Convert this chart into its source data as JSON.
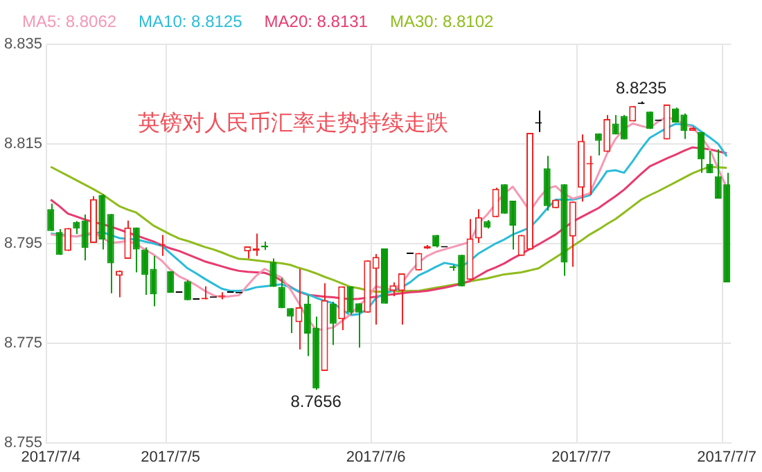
{
  "chart_data": {
    "type": "candlestick",
    "legend": "top left",
    "grid": true,
    "categories": [
      "2017/7/4",
      null,
      null,
      null,
      null,
      null,
      null,
      null,
      null,
      null,
      null,
      null,
      null,
      null,
      "2017/7/5",
      null,
      null,
      null,
      null,
      null,
      null,
      null,
      null,
      null,
      null,
      null,
      null,
      null,
      null,
      null,
      null,
      null,
      null,
      null,
      null,
      null,
      null,
      null,
      "2017/7/6",
      null,
      null,
      null,
      null,
      null,
      null,
      null,
      null,
      null,
      null,
      null,
      null,
      null,
      null,
      null,
      null,
      null,
      null,
      null,
      null,
      null,
      null,
      null,
      "2017/7/7",
      null,
      null,
      null,
      null,
      null,
      null,
      null,
      null,
      null,
      null,
      null,
      null,
      null,
      null,
      null,
      null,
      "2017/7/7"
    ],
    "ohlc": [
      [
        8.8019,
        8.803,
        8.7975,
        8.7975
      ],
      [
        8.7973,
        8.7979,
        8.7927,
        8.7927
      ],
      [
        8.7935,
        8.7981,
        8.7935,
        8.7981
      ],
      [
        8.7993,
        8.7995,
        8.7969,
        8.798
      ],
      [
        8.7996,
        8.8008,
        8.7916,
        8.7941
      ],
      [
        8.7951,
        8.8045,
        8.7951,
        8.8039
      ],
      [
        8.8047,
        8.8049,
        8.7938,
        8.7958
      ],
      [
        8.8009,
        8.8009,
        8.785,
        8.791
      ],
      [
        8.7885,
        8.7896,
        8.7842,
        8.7895
      ],
      [
        8.7919,
        8.7996,
        8.7919,
        8.7982
      ],
      [
        8.7982,
        8.7982,
        8.7892,
        8.7938
      ],
      [
        8.7938,
        8.7942,
        8.7847,
        8.7887
      ],
      [
        8.7899,
        8.7925,
        8.7824,
        8.7848
      ],
      [
        8.7946,
        8.7967,
        8.7925,
        8.7948
      ],
      [
        8.7894,
        8.7894,
        8.7851,
        8.7851
      ],
      [
        8.7851,
        8.7851,
        8.7851,
        8.7851
      ],
      [
        8.7874,
        8.7876,
        8.7836,
        8.7836
      ],
      [
        8.7837,
        8.7837,
        8.7837,
        8.7837
      ],
      [
        8.7838,
        8.7864,
        8.7838,
        8.7841
      ],
      [
        8.7841,
        8.7841,
        8.7841,
        8.7841
      ],
      [
        8.7843,
        8.7852,
        8.7838,
        8.7846
      ],
      [
        8.7851,
        8.7851,
        8.7851,
        8.7851
      ],
      [
        8.785,
        8.785,
        8.785,
        8.785
      ],
      [
        8.7934,
        8.7944,
        8.792,
        8.7944
      ],
      [
        8.7935,
        8.797,
        8.7925,
        8.794
      ],
      [
        8.7946,
        8.7954,
        8.7937,
        8.7942
      ],
      [
        8.7913,
        8.792,
        8.7863,
        8.7863
      ],
      [
        8.7863,
        8.7881,
        8.782,
        8.782
      ],
      [
        8.782,
        8.782,
        8.777,
        8.7803
      ],
      [
        8.7792,
        8.7899,
        8.7737,
        8.7822
      ],
      [
        8.7829,
        8.7846,
        8.7724,
        8.7769
      ],
      [
        8.7781,
        8.7803,
        8.7656,
        8.7659
      ],
      [
        8.7694,
        8.787,
        8.7694,
        8.7836
      ],
      [
        8.7829,
        8.7833,
        8.7746,
        8.7789
      ],
      [
        8.7798,
        8.7864,
        8.7776,
        8.7864
      ],
      [
        8.7864,
        8.7864,
        8.7807,
        8.7811
      ],
      [
        8.783,
        8.783,
        8.7741,
        8.7811
      ],
      [
        8.7811,
        8.7916,
        8.7811,
        8.7916
      ],
      [
        8.7899,
        8.7929,
        8.7787,
        8.7923
      ],
      [
        8.794,
        8.794,
        8.7829,
        8.7829
      ],
      [
        8.7855,
        8.7872,
        8.7844,
        8.7866
      ],
      [
        8.7855,
        8.789,
        8.7787,
        8.789
      ],
      [
        8.7929,
        8.7929,
        8.7929,
        8.7929
      ],
      [
        8.7896,
        8.7931,
        8.7896,
        8.7931
      ],
      [
        8.794,
        8.7947,
        8.7939,
        8.7945
      ],
      [
        8.7967,
        8.7967,
        8.7942,
        8.7944
      ],
      [
        8.7942,
        8.7942,
        8.7942,
        8.7942
      ],
      [
        8.7902,
        8.7907,
        8.7895,
        8.7901
      ],
      [
        8.7927,
        8.7927,
        8.7864,
        8.7864
      ],
      [
        8.7877,
        8.7999,
        8.7877,
        8.796
      ],
      [
        8.796,
        8.8019,
        8.7951,
        8.8003
      ],
      [
        8.7995,
        8.7997,
        8.798,
        8.7982
      ],
      [
        8.8003,
        8.8062,
        8.8003,
        8.806
      ],
      [
        8.8069,
        8.8069,
        8.801,
        8.801
      ],
      [
        8.8036,
        8.8036,
        8.7938,
        8.7986
      ],
      [
        8.7925,
        8.7967,
        8.7925,
        8.7967
      ],
      [
        8.7938,
        8.8172,
        8.7938,
        8.8172
      ],
      [
        8.8191,
        8.8217,
        8.8174,
        8.8191
      ],
      [
        8.8101,
        8.8126,
        8.8016,
        8.8025
      ],
      [
        8.8021,
        8.8038,
        8.8021,
        8.8038
      ],
      [
        8.8069,
        8.8069,
        8.7885,
        8.7912
      ],
      [
        8.7964,
        8.8034,
        8.7903,
        8.8034
      ],
      [
        8.8062,
        8.8169,
        8.8034,
        8.8156
      ],
      [
        8.8109,
        8.8126,
        8.8047,
        8.8111
      ],
      [
        8.8171,
        8.8171,
        8.8127,
        8.8156
      ],
      [
        8.8134,
        8.8208,
        8.8134,
        8.82
      ],
      [
        8.8191,
        8.8208,
        8.8169,
        8.8169
      ],
      [
        8.8206,
        8.8208,
        8.8159,
        8.8159
      ],
      [
        8.8195,
        8.8226,
        8.8195,
        8.8226
      ],
      [
        8.823,
        8.8235,
        8.823,
        8.823
      ],
      [
        8.8215,
        8.8215,
        8.818,
        8.818
      ],
      [
        8.8196,
        8.8196,
        8.8196,
        8.8196
      ],
      [
        8.8159,
        8.8229,
        8.8159,
        8.8229
      ],
      [
        8.8221,
        8.8223,
        8.8193,
        8.8193
      ],
      [
        8.8209,
        8.8211,
        8.816,
        8.8176
      ],
      [
        8.8176,
        8.8184,
        8.8176,
        8.8182
      ],
      [
        8.8174,
        8.8174,
        8.8092,
        8.8119
      ],
      [
        8.811,
        8.8136,
        8.8091,
        8.8091
      ],
      [
        8.8085,
        8.8139,
        8.804,
        8.804
      ],
      [
        8.8069,
        8.8092,
        8.7872,
        8.7872
      ]
    ],
    "colors": [
      "#0a9a0a",
      "#0a9a0a",
      "#f02020",
      "#0a9a0a",
      "#0a9a0a",
      "#f02020",
      "#0a9a0a",
      "#0a9a0a",
      "#f02020",
      "#f02020",
      "#0a9a0a",
      "#0a9a0a",
      "#0a9a0a",
      "#f02020",
      "#0a9a0a",
      "#000000",
      "#0a9a0a",
      "#000000",
      "#f02020",
      "#000000",
      "#f02020",
      "#000000",
      "#000000",
      "#f02020",
      "#f02020",
      "#0a9a0a",
      "#0a9a0a",
      "#0a9a0a",
      "#0a9a0a",
      "#f02020",
      "#0a9a0a",
      "#0a9a0a",
      "#f02020",
      "#0a9a0a",
      "#f02020",
      "#0a9a0a",
      "#0a9a0a",
      "#f02020",
      "#f02020",
      "#0a9a0a",
      "#f02020",
      "#f02020",
      "#000000",
      "#f02020",
      "#f02020",
      "#0a9a0a",
      "#000000",
      "#0a9a0a",
      "#0a9a0a",
      "#f02020",
      "#f02020",
      "#0a9a0a",
      "#f02020",
      "#0a9a0a",
      "#0a9a0a",
      "#f02020",
      "#f02020",
      "#000000",
      "#0a9a0a",
      "#f02020",
      "#0a9a0a",
      "#f02020",
      "#f02020",
      "#f02020",
      "#0a9a0a",
      "#f02020",
      "#0a9a0a",
      "#0a9a0a",
      "#f02020",
      "#000000",
      "#0a9a0a",
      "#000000",
      "#f02020",
      "#0a9a0a",
      "#0a9a0a",
      "#f02020",
      "#0a9a0a",
      "#0a9a0a",
      "#0a9a0a",
      "#0a9a0a"
    ],
    "series": [
      {
        "type": "line",
        "name": "MA5: 8.8062",
        "color": "#f598b4",
        "values": [
          8.7968,
          8.7966,
          8.7965,
          8.7964,
          8.7968,
          8.7973,
          8.7962,
          8.7951,
          8.7953,
          8.7955,
          8.7949,
          8.7938,
          8.7928,
          8.7915,
          8.7897,
          8.7884,
          8.7876,
          8.7866,
          8.7855,
          8.7846,
          8.7842,
          8.7844,
          8.7846,
          8.7866,
          8.7885,
          8.7899,
          8.789,
          8.7881,
          8.7858,
          8.783,
          8.78,
          8.7776,
          8.7778,
          8.7781,
          8.7794,
          8.7807,
          8.7825,
          8.784,
          8.7864,
          8.786,
          8.7856,
          8.787,
          8.7893,
          8.7912,
          8.7925,
          8.7933,
          8.7938,
          8.7943,
          8.7948,
          8.7953,
          8.799,
          8.8008,
          8.803,
          8.805,
          8.8064,
          8.804,
          8.8015,
          8.804,
          8.806,
          8.8065,
          8.805,
          8.804,
          8.8045,
          8.8051,
          8.809,
          8.813,
          8.816,
          8.818,
          8.8191,
          8.8186,
          8.8182,
          8.8195,
          8.8204,
          8.8198,
          8.819,
          8.8183,
          8.8165,
          8.814,
          8.81,
          8.8062
        ]
      },
      {
        "type": "line",
        "name": "MA10: 8.8125",
        "color": "#2bbcd9",
        "values": [
          8.797,
          8.7968,
          8.7966,
          8.7964,
          8.7967,
          8.797,
          8.7973,
          8.7967,
          8.7961,
          8.7959,
          8.7958,
          8.7954,
          8.795,
          8.7945,
          8.793,
          8.7915,
          8.79,
          8.789,
          8.7879,
          8.7869,
          8.7859,
          8.7855,
          8.7855,
          8.7857,
          8.7862,
          8.7864,
          8.7866,
          8.7868,
          8.7862,
          8.7854,
          8.7848,
          8.7841,
          8.7835,
          8.783,
          8.7818,
          8.7806,
          8.7808,
          8.7818,
          8.784,
          8.785,
          8.7855,
          8.7862,
          8.7872,
          8.7886,
          8.7894,
          8.7903,
          8.7911,
          8.7908,
          8.7904,
          8.7915,
          8.793,
          8.794,
          8.795,
          8.7958,
          8.7968,
          8.7975,
          8.7982,
          8.8,
          8.802,
          8.8038,
          8.8038,
          8.8038,
          8.8042,
          8.8047,
          8.807,
          8.8095,
          8.8097,
          8.8092,
          8.8115,
          8.814,
          8.8162,
          8.8172,
          8.8182,
          8.819,
          8.8189,
          8.8187,
          8.8175,
          8.8163,
          8.815,
          8.8125
        ]
      },
      {
        "type": "line",
        "name": "MA20: 8.8131",
        "color": "#e83a6e",
        "values": [
          8.8038,
          8.8025,
          8.801,
          8.8004,
          8.7998,
          8.7993,
          8.7989,
          8.7984,
          8.7978,
          8.7972,
          8.7966,
          8.796,
          8.7954,
          8.7946,
          8.794,
          8.7935,
          8.7928,
          8.7921,
          8.7914,
          8.7909,
          8.7904,
          8.7899,
          8.7895,
          8.7893,
          8.7892,
          8.7891,
          8.7885,
          8.7875,
          8.7863,
          8.7853,
          8.7847,
          8.7845,
          8.7843,
          8.7842,
          8.784,
          8.7838,
          8.7839,
          8.7841,
          8.7843,
          8.7846,
          8.7848,
          8.785,
          8.7852,
          8.7853,
          8.7855,
          8.7858,
          8.7861,
          8.7865,
          8.7869,
          8.7875,
          8.7885,
          8.7895,
          8.7902,
          8.791,
          8.792,
          8.7929,
          8.7939,
          8.7948,
          8.7958,
          8.7968,
          8.7981,
          8.7994,
          8.8003,
          8.8012,
          8.8021,
          8.8033,
          8.8045,
          8.8058,
          8.8074,
          8.809,
          8.8105,
          8.8113,
          8.8121,
          8.8128,
          8.8136,
          8.8143,
          8.8141,
          8.8139,
          8.8135,
          8.8131
        ]
      },
      {
        "type": "line",
        "name": "MA30: 8.8102",
        "color": "#8fbc1c",
        "values": [
          8.8104,
          8.8095,
          8.8086,
          8.8077,
          8.8068,
          8.8059,
          8.8049,
          8.8037,
          8.8025,
          8.8018,
          8.8012,
          8.7999,
          8.7986,
          8.7977,
          8.7968,
          8.796,
          8.7955,
          8.7949,
          8.7943,
          8.7938,
          8.7932,
          8.7925,
          8.7919,
          8.7918,
          8.7916,
          8.7914,
          8.7912,
          8.791,
          8.7907,
          8.7901,
          8.7896,
          8.789,
          8.7883,
          8.7877,
          8.787,
          8.7863,
          8.786,
          8.7856,
          8.7853,
          8.7853,
          8.7854,
          8.7854,
          8.7855,
          8.7855,
          8.7858,
          8.7861,
          8.7864,
          8.7867,
          8.787,
          8.7874,
          8.7877,
          8.788,
          8.7884,
          8.7888,
          8.789,
          8.7892,
          8.7896,
          8.79,
          8.7911,
          8.7922,
          8.7933,
          8.7945,
          8.7956,
          8.7968,
          8.7978,
          8.7989,
          8.7999,
          8.8012,
          8.8025,
          8.8038,
          8.8047,
          8.8055,
          8.8064,
          8.8073,
          8.8082,
          8.8091,
          8.8098,
          8.8104,
          8.8103,
          8.8102
        ]
      }
    ],
    "ylim": [
      8.755,
      8.835
    ],
    "yticks": [
      8.755,
      8.775,
      8.795,
      8.815,
      8.835
    ],
    "annotations": [
      "英镑对人民币汇率走势持续走跌",
      {
        "text": "8.7656",
        "y": 8.7656
      },
      {
        "text": "8.8235",
        "y": 8.8235
      }
    ]
  }
}
